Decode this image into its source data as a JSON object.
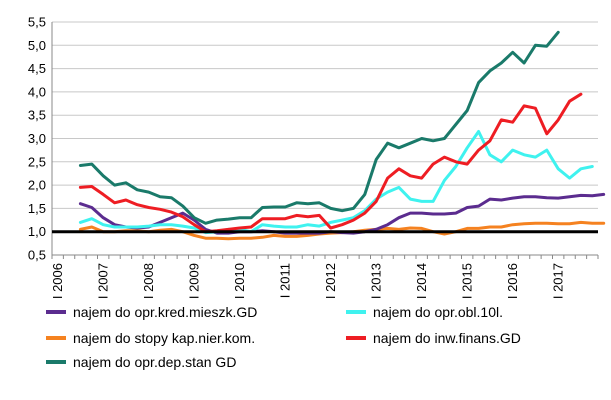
{
  "chart_data": {
    "type": "line",
    "x_tick_labels": [
      "I 2006",
      "I 2007",
      "I 2008",
      "I 2009",
      "I 2010",
      "I 2011",
      "I 2012",
      "I 2013",
      "I 2014",
      "I 2015",
      "I 2016",
      "I 2017"
    ],
    "ylim": [
      0.5,
      5.5
    ],
    "yticks": [
      "0,5",
      "1,0",
      "1,5",
      "2,0",
      "2,5",
      "3,0",
      "3,5",
      "4,0",
      "4,5",
      "5,0",
      "5,5"
    ],
    "grid": "horizontal",
    "legend_position": "bottom",
    "reference_line": 1.0,
    "series": [
      {
        "name": "najem do opr.kred.mieszk.GD",
        "color": "#5B2C8F",
        "start_quarter": 2,
        "values": [
          1.6,
          1.52,
          1.3,
          1.15,
          1.1,
          1.08,
          1.1,
          1.2,
          1.3,
          1.4,
          1.25,
          1.05,
          0.97,
          0.97,
          1.0,
          1.0,
          1.02,
          1.0,
          0.97,
          0.97,
          0.97,
          0.97,
          1.0,
          0.98,
          0.97,
          1.0,
          1.05,
          1.15,
          1.3,
          1.4,
          1.4,
          1.38,
          1.38,
          1.4,
          1.52,
          1.55,
          1.7,
          1.68,
          1.72,
          1.75,
          1.75,
          1.73,
          1.72,
          1.75,
          1.78,
          1.77,
          1.8
        ]
      },
      {
        "name": "najem do stopy kap.nier.kom.",
        "color": "#F58220",
        "start_quarter": 2,
        "values": [
          1.05,
          1.1,
          1.0,
          1.0,
          1.02,
          1.02,
          1.0,
          1.03,
          1.05,
          1.0,
          0.92,
          0.86,
          0.86,
          0.85,
          0.86,
          0.86,
          0.88,
          0.92,
          0.9,
          0.9,
          0.92,
          0.95,
          0.97,
          0.98,
          1.0,
          1.03,
          1.05,
          1.07,
          1.05,
          1.08,
          1.07,
          1.0,
          0.95,
          1.0,
          1.07,
          1.07,
          1.1,
          1.1,
          1.15,
          1.17,
          1.18,
          1.18,
          1.17,
          1.17,
          1.2,
          1.18,
          1.18
        ]
      },
      {
        "name": "najem do opr.obl.10l.",
        "color": "#3FF2EF",
        "start_quarter": 2,
        "values": [
          1.2,
          1.28,
          1.15,
          1.1,
          1.1,
          1.1,
          1.12,
          1.15,
          1.15,
          1.12,
          1.08,
          0.98,
          1.0,
          1.05,
          1.05,
          1.0,
          1.15,
          1.12,
          1.1,
          1.1,
          1.15,
          1.12,
          1.2,
          1.25,
          1.3,
          1.45,
          1.7,
          1.85,
          1.95,
          1.7,
          1.65,
          1.65,
          2.1,
          2.4,
          2.8,
          3.15,
          2.65,
          2.5,
          2.75,
          2.65,
          2.6,
          2.75,
          2.35,
          2.15,
          2.35,
          2.4
        ]
      },
      {
        "name": "najem do inw.finans.GD",
        "color": "#EE1D23",
        "start_quarter": 2,
        "values": [
          1.95,
          1.97,
          1.8,
          1.62,
          1.68,
          1.58,
          1.52,
          1.48,
          1.42,
          1.32,
          1.15,
          1.0,
          1.02,
          1.05,
          1.08,
          1.1,
          1.28,
          1.28,
          1.28,
          1.35,
          1.32,
          1.35,
          1.08,
          1.15,
          1.25,
          1.4,
          1.65,
          2.15,
          2.35,
          2.2,
          2.15,
          2.45,
          2.6,
          2.5,
          2.45,
          2.75,
          2.95,
          3.4,
          3.35,
          3.7,
          3.65,
          3.1,
          3.4,
          3.8,
          3.95
        ]
      },
      {
        "name": "najem do opr.dep.stan GD",
        "color": "#1A7A6A",
        "start_quarter": 2,
        "values": [
          2.42,
          2.45,
          2.2,
          2.0,
          2.05,
          1.9,
          1.85,
          1.75,
          1.73,
          1.55,
          1.3,
          1.18,
          1.25,
          1.27,
          1.3,
          1.3,
          1.52,
          1.53,
          1.53,
          1.62,
          1.6,
          1.62,
          1.5,
          1.45,
          1.5,
          1.8,
          2.55,
          2.9,
          2.8,
          2.9,
          3.0,
          2.95,
          3.0,
          3.3,
          3.6,
          4.2,
          4.45,
          4.62,
          4.85,
          4.62,
          5.0,
          4.98,
          5.28
        ]
      }
    ]
  }
}
